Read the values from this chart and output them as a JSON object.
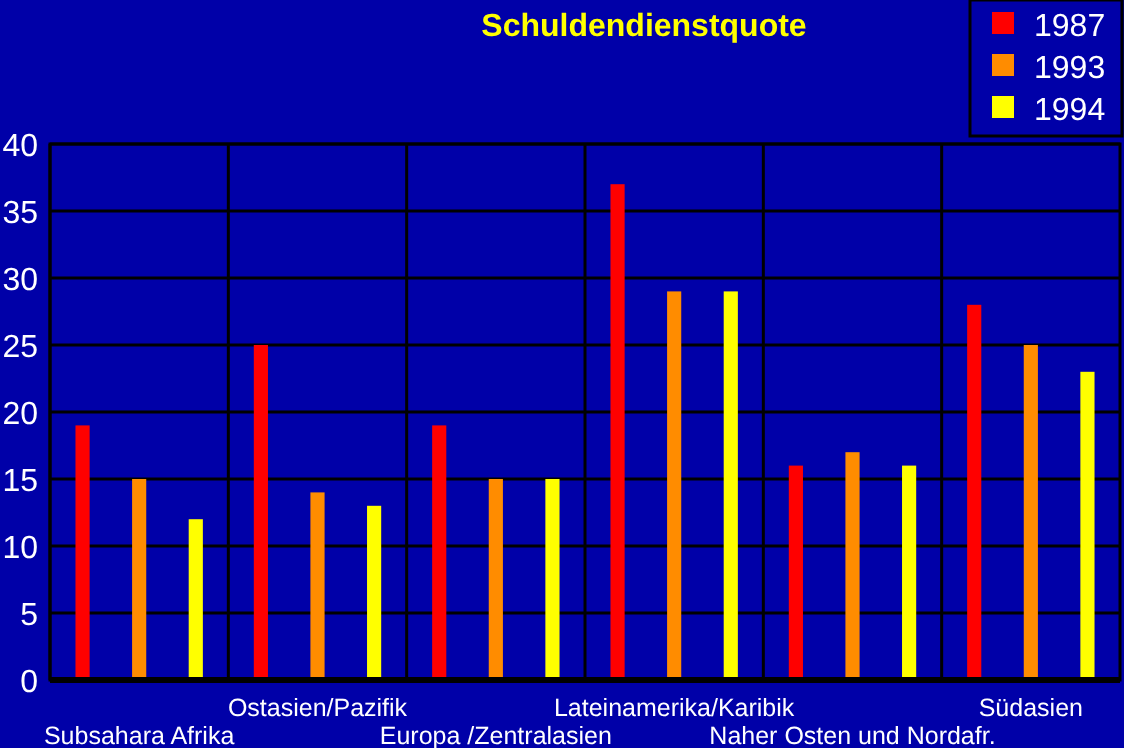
{
  "chart_data": {
    "type": "bar",
    "title": "Schuldendienstquote",
    "categories": [
      "Subsahara Afrika",
      "Ostasien/Pazifik",
      "Europa /Zentralasien",
      "Lateinamerika/Karibik",
      "Naher Osten und Nordafr.",
      "Südasien"
    ],
    "series": [
      {
        "name": "1987",
        "color": "#ff0000",
        "values": [
          19,
          25,
          19,
          37,
          16,
          28
        ]
      },
      {
        "name": "1993",
        "color": "#ff8c00",
        "values": [
          15,
          14,
          15,
          29,
          17,
          25
        ]
      },
      {
        "name": "1994",
        "color": "#ffff00",
        "values": [
          12,
          13,
          15,
          29,
          16,
          23
        ]
      }
    ],
    "ylim": [
      0,
      40
    ],
    "yticks": [
      0,
      5,
      10,
      15,
      20,
      25,
      30,
      35,
      40
    ],
    "grid": true,
    "legend": "top right"
  }
}
